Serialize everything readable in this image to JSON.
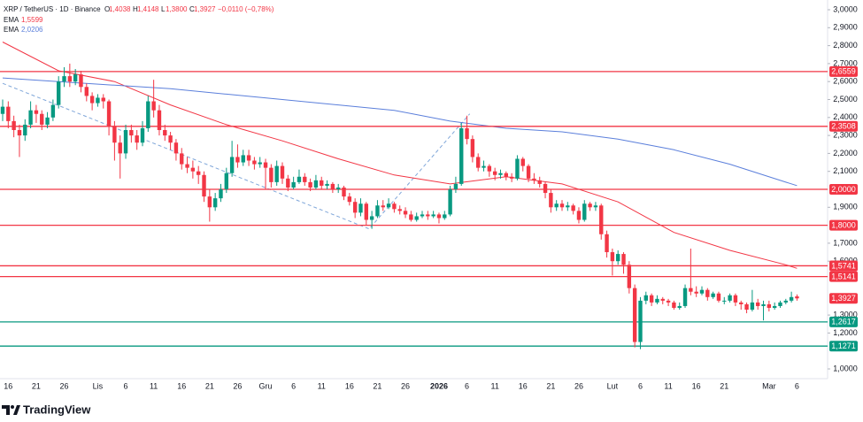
{
  "chart_data": {
    "type": "candlestick",
    "title": "XRP / TetherUS · 1D · Binance",
    "ohlc_header": [
      {
        "label": "O",
        "value": "1,4038"
      },
      {
        "label": "H",
        "value": "1,4148"
      },
      {
        "label": "L",
        "value": "1,3800"
      },
      {
        "label": "C",
        "value": "1,3927"
      }
    ],
    "change": "−0,0110 (−0,78%)",
    "brand": "TradingView",
    "up_color": "#089981",
    "down_color": "#f23645",
    "ylim": [
      1.0,
      3.0
    ],
    "yticks": [
      {
        "value": 3.0,
        "label": "3,0000"
      },
      {
        "value": 2.9,
        "label": "2,9000"
      },
      {
        "value": 2.8,
        "label": "2,8000"
      },
      {
        "value": 2.7,
        "label": "2,7000"
      },
      {
        "value": 2.6,
        "label": "2,6000"
      },
      {
        "value": 2.5,
        "label": "2,5000"
      },
      {
        "value": 2.4,
        "label": "2,4000"
      },
      {
        "value": 2.3,
        "label": "2,3000"
      },
      {
        "value": 2.2,
        "label": "2,2000"
      },
      {
        "value": 2.1,
        "label": "2,1000"
      },
      {
        "value": 1.9,
        "label": "1,9000"
      },
      {
        "value": 1.7,
        "label": "1,7000"
      },
      {
        "value": 1.6,
        "label": "1,6000"
      },
      {
        "value": 1.3,
        "label": "1,3000"
      },
      {
        "value": 1.2,
        "label": "1,2000"
      },
      {
        "value": 1.0,
        "label": "1,0000"
      }
    ],
    "categories": [
      null,
      "16",
      null,
      null,
      null,
      null,
      "21",
      null,
      null,
      null,
      null,
      "26",
      null,
      null,
      null,
      null,
      null,
      "Lis",
      null,
      null,
      null,
      null,
      "6",
      null,
      null,
      null,
      null,
      "11",
      null,
      null,
      null,
      null,
      "16",
      null,
      null,
      null,
      null,
      "21",
      null,
      null,
      null,
      null,
      "26",
      null,
      null,
      null,
      null,
      "Gru",
      null,
      null,
      null,
      null,
      "6",
      null,
      null,
      null,
      null,
      "11",
      null,
      null,
      null,
      null,
      "16",
      null,
      null,
      null,
      null,
      "21",
      null,
      null,
      null,
      null,
      "26",
      null,
      null,
      null,
      null,
      null,
      "2026",
      null,
      null,
      null,
      null,
      "6",
      null,
      null,
      null,
      null,
      "11",
      null,
      null,
      null,
      null,
      "16",
      null,
      null,
      null,
      null,
      "21",
      null,
      null,
      null,
      null,
      "26",
      null,
      null,
      null,
      null,
      null,
      "Lut",
      null,
      null,
      null,
      null,
      "6",
      null,
      null,
      null,
      null,
      "11",
      null,
      null,
      null,
      null,
      "16",
      null,
      null,
      null,
      null,
      "21",
      null,
      null,
      null,
      null,
      null,
      null,
      null,
      "Mar",
      null,
      null,
      null,
      null,
      "6"
    ],
    "candles": [
      [
        2.42,
        2.5,
        2.38,
        2.46
      ],
      [
        2.46,
        2.49,
        2.34,
        2.38
      ],
      [
        2.38,
        2.41,
        2.29,
        2.33
      ],
      [
        2.33,
        2.36,
        2.18,
        2.3
      ],
      [
        2.3,
        2.39,
        2.27,
        2.36
      ],
      [
        2.36,
        2.49,
        2.34,
        2.44
      ],
      [
        2.44,
        2.47,
        2.37,
        2.42
      ],
      [
        2.42,
        2.44,
        2.33,
        2.36
      ],
      [
        2.36,
        2.43,
        2.34,
        2.4
      ],
      [
        2.4,
        2.5,
        2.38,
        2.47
      ],
      [
        2.47,
        2.63,
        2.45,
        2.6
      ],
      [
        2.6,
        2.68,
        2.57,
        2.63
      ],
      [
        2.63,
        2.7,
        2.57,
        2.6
      ],
      [
        2.6,
        2.67,
        2.58,
        2.64
      ],
      [
        2.64,
        2.66,
        2.54,
        2.57
      ],
      [
        2.57,
        2.59,
        2.49,
        2.52
      ],
      [
        2.52,
        2.54,
        2.44,
        2.48
      ],
      [
        2.48,
        2.53,
        2.46,
        2.51
      ],
      [
        2.51,
        2.53,
        2.45,
        2.49
      ],
      [
        2.49,
        2.5,
        2.3,
        2.35
      ],
      [
        2.35,
        2.38,
        2.16,
        2.26
      ],
      [
        2.26,
        2.3,
        2.06,
        2.2
      ],
      [
        2.2,
        2.36,
        2.17,
        2.33
      ],
      [
        2.33,
        2.36,
        2.26,
        2.3
      ],
      [
        2.3,
        2.33,
        2.22,
        2.26
      ],
      [
        2.26,
        2.38,
        2.24,
        2.34
      ],
      [
        2.34,
        2.52,
        2.32,
        2.49
      ],
      [
        2.49,
        2.61,
        2.4,
        2.44
      ],
      [
        2.44,
        2.47,
        2.3,
        2.33
      ],
      [
        2.33,
        2.36,
        2.27,
        2.3
      ],
      [
        2.3,
        2.32,
        2.22,
        2.26
      ],
      [
        2.26,
        2.28,
        2.16,
        2.2
      ],
      [
        2.2,
        2.23,
        2.11,
        2.14
      ],
      [
        2.14,
        2.18,
        2.09,
        2.12
      ],
      [
        2.12,
        2.16,
        2.06,
        2.1
      ],
      [
        2.1,
        2.13,
        2.03,
        2.08
      ],
      [
        2.08,
        2.1,
        1.93,
        1.96
      ],
      [
        1.96,
        2.0,
        1.82,
        1.9
      ],
      [
        1.9,
        1.98,
        1.88,
        1.95
      ],
      [
        1.95,
        2.03,
        1.93,
        2.0
      ],
      [
        2.0,
        2.12,
        1.98,
        2.09
      ],
      [
        2.09,
        2.27,
        2.07,
        2.18
      ],
      [
        2.18,
        2.25,
        2.12,
        2.15
      ],
      [
        2.15,
        2.22,
        2.13,
        2.19
      ],
      [
        2.19,
        2.22,
        2.13,
        2.16
      ],
      [
        2.16,
        2.18,
        2.11,
        2.14
      ],
      [
        2.14,
        2.18,
        2.12,
        2.15
      ],
      [
        2.15,
        2.17,
        2.0,
        2.12
      ],
      [
        2.12,
        2.14,
        2.01,
        2.04
      ],
      [
        2.04,
        2.16,
        2.02,
        2.13
      ],
      [
        2.13,
        2.15,
        2.03,
        2.06
      ],
      [
        2.06,
        2.08,
        1.99,
        2.01
      ],
      [
        2.01,
        2.07,
        2.0,
        2.04
      ],
      [
        2.04,
        2.11,
        2.03,
        2.07
      ],
      [
        2.07,
        2.09,
        2.02,
        2.04
      ],
      [
        2.04,
        2.06,
        1.99,
        2.01
      ],
      [
        2.01,
        2.08,
        2.0,
        2.05
      ],
      [
        2.05,
        2.07,
        2.0,
        2.02
      ],
      [
        2.02,
        2.05,
        2.0,
        2.03
      ],
      [
        2.03,
        2.04,
        1.98,
        2.0
      ],
      [
        2.0,
        2.03,
        1.98,
        2.01
      ],
      [
        2.01,
        2.02,
        1.94,
        1.96
      ],
      [
        1.96,
        1.98,
        1.91,
        1.93
      ],
      [
        1.93,
        1.95,
        1.84,
        1.87
      ],
      [
        1.87,
        1.95,
        1.85,
        1.92
      ],
      [
        1.92,
        1.93,
        1.8,
        1.83
      ],
      [
        1.83,
        1.88,
        1.78,
        1.85
      ],
      [
        1.85,
        1.94,
        1.84,
        1.91
      ],
      [
        1.91,
        1.94,
        1.88,
        1.9
      ],
      [
        1.9,
        1.95,
        1.89,
        1.92
      ],
      [
        1.92,
        1.93,
        1.87,
        1.89
      ],
      [
        1.89,
        1.91,
        1.86,
        1.88
      ],
      [
        1.88,
        1.9,
        1.84,
        1.86
      ],
      [
        1.86,
        1.88,
        1.82,
        1.83
      ],
      [
        1.83,
        1.87,
        1.82,
        1.85
      ],
      [
        1.85,
        1.88,
        1.84,
        1.86
      ],
      [
        1.86,
        1.88,
        1.83,
        1.85
      ],
      [
        1.85,
        1.88,
        1.84,
        1.86
      ],
      [
        1.86,
        1.87,
        1.81,
        1.84
      ],
      [
        1.84,
        1.88,
        1.83,
        1.86
      ],
      [
        1.86,
        2.02,
        1.85,
        2.0
      ],
      [
        2.0,
        2.07,
        1.98,
        2.03
      ],
      [
        2.03,
        2.37,
        2.02,
        2.34
      ],
      [
        2.34,
        2.41,
        2.25,
        2.28
      ],
      [
        2.28,
        2.3,
        2.15,
        2.18
      ],
      [
        2.18,
        2.2,
        2.1,
        2.12
      ],
      [
        2.12,
        2.16,
        2.1,
        2.13
      ],
      [
        2.13,
        2.14,
        2.07,
        2.1
      ],
      [
        2.1,
        2.12,
        2.05,
        2.08
      ],
      [
        2.08,
        2.11,
        2.06,
        2.09
      ],
      [
        2.09,
        2.1,
        2.05,
        2.07
      ],
      [
        2.07,
        2.09,
        2.04,
        2.06
      ],
      [
        2.06,
        2.19,
        2.05,
        2.17
      ],
      [
        2.17,
        2.18,
        2.1,
        2.13
      ],
      [
        2.13,
        2.14,
        2.04,
        2.06
      ],
      [
        2.06,
        2.09,
        2.03,
        2.05
      ],
      [
        2.05,
        2.07,
        2.01,
        2.03
      ],
      [
        2.03,
        2.04,
        1.95,
        1.98
      ],
      [
        1.98,
        2.0,
        1.87,
        1.9
      ],
      [
        1.9,
        1.94,
        1.88,
        1.92
      ],
      [
        1.92,
        1.94,
        1.88,
        1.9
      ],
      [
        1.9,
        1.93,
        1.88,
        1.91
      ],
      [
        1.91,
        1.92,
        1.86,
        1.88
      ],
      [
        1.88,
        1.9,
        1.81,
        1.83
      ],
      [
        1.83,
        1.94,
        1.82,
        1.92
      ],
      [
        1.92,
        1.93,
        1.88,
        1.9
      ],
      [
        1.9,
        1.93,
        1.88,
        1.91
      ],
      [
        1.91,
        1.92,
        1.72,
        1.75
      ],
      [
        1.75,
        1.77,
        1.62,
        1.65
      ],
      [
        1.65,
        1.67,
        1.52,
        1.6
      ],
      [
        1.6,
        1.66,
        1.58,
        1.64
      ],
      [
        1.64,
        1.65,
        1.53,
        1.58
      ],
      [
        1.58,
        1.6,
        1.42,
        1.45
      ],
      [
        1.45,
        1.47,
        1.12,
        1.15
      ],
      [
        1.15,
        1.4,
        1.11,
        1.38
      ],
      [
        1.38,
        1.43,
        1.36,
        1.41
      ],
      [
        1.41,
        1.42,
        1.35,
        1.37
      ],
      [
        1.37,
        1.41,
        1.36,
        1.39
      ],
      [
        1.39,
        1.4,
        1.36,
        1.38
      ],
      [
        1.38,
        1.39,
        1.35,
        1.37
      ],
      [
        1.37,
        1.38,
        1.33,
        1.34
      ],
      [
        1.34,
        1.37,
        1.33,
        1.35
      ],
      [
        1.35,
        1.47,
        1.34,
        1.45
      ],
      [
        1.45,
        1.67,
        1.41,
        1.43
      ],
      [
        1.43,
        1.46,
        1.4,
        1.42
      ],
      [
        1.42,
        1.46,
        1.41,
        1.44
      ],
      [
        1.44,
        1.45,
        1.38,
        1.4
      ],
      [
        1.4,
        1.43,
        1.39,
        1.42
      ],
      [
        1.42,
        1.43,
        1.37,
        1.38
      ],
      [
        1.38,
        1.4,
        1.36,
        1.38
      ],
      [
        1.38,
        1.42,
        1.37,
        1.41
      ],
      [
        1.41,
        1.42,
        1.35,
        1.37
      ],
      [
        1.37,
        1.38,
        1.33,
        1.36
      ],
      [
        1.36,
        1.37,
        1.31,
        1.33
      ],
      [
        1.33,
        1.44,
        1.32,
        1.37
      ],
      [
        1.37,
        1.39,
        1.33,
        1.35
      ],
      [
        1.35,
        1.38,
        1.27,
        1.36
      ],
      [
        1.36,
        1.38,
        1.32,
        1.34
      ],
      [
        1.34,
        1.37,
        1.33,
        1.35
      ],
      [
        1.35,
        1.38,
        1.34,
        1.37
      ],
      [
        1.37,
        1.39,
        1.36,
        1.38
      ],
      [
        1.38,
        1.43,
        1.37,
        1.4
      ],
      [
        1.4038,
        1.4148,
        1.38,
        1.3927
      ]
    ],
    "series": [
      {
        "name": "EMA",
        "label": "1,5599",
        "color": "#f23645",
        "x": [
          0,
          10,
          20,
          30,
          40,
          50,
          60,
          70,
          80,
          90,
          100,
          110,
          120,
          130,
          140,
          142
        ],
        "values": [
          2.82,
          2.66,
          2.6,
          2.47,
          2.36,
          2.27,
          2.17,
          2.08,
          2.03,
          2.07,
          2.03,
          1.93,
          1.76,
          1.66,
          1.58,
          1.5599
        ]
      },
      {
        "name": "EMA",
        "label": "2,0206",
        "color": "#5b7fdb",
        "x": [
          0,
          10,
          20,
          30,
          40,
          50,
          60,
          70,
          80,
          90,
          100,
          110,
          120,
          130,
          140,
          142
        ],
        "values": [
          2.62,
          2.6,
          2.58,
          2.56,
          2.53,
          2.5,
          2.47,
          2.44,
          2.38,
          2.34,
          2.32,
          2.28,
          2.22,
          2.14,
          2.04,
          2.0206
        ]
      }
    ],
    "trend_line": {
      "color": "#7fa6d9",
      "x": [
        0,
        65.5,
        83.5
      ],
      "values": [
        2.59,
        1.78,
        2.42
      ]
    },
    "levels": [
      {
        "value": 2.6559,
        "label": "2,6559",
        "color": "#f23645"
      },
      {
        "value": 2.3508,
        "label": "2,3508",
        "color": "#f23645"
      },
      {
        "value": 2.0,
        "label": "2,0000",
        "color": "#f23645"
      },
      {
        "value": 1.8,
        "label": "1,8000",
        "color": "#f23645"
      },
      {
        "value": 1.5741,
        "label": "1,5741",
        "color": "#f23645"
      },
      {
        "value": 1.5141,
        "label": "1,5141",
        "color": "#f23645"
      },
      {
        "value": 1.2617,
        "label": "1,2617",
        "color": "#089981"
      },
      {
        "value": 1.1271,
        "label": "1,1271",
        "color": "#089981"
      }
    ],
    "last_price": {
      "value": 1.3927,
      "label": "1,3927",
      "color": "#f23645"
    }
  }
}
